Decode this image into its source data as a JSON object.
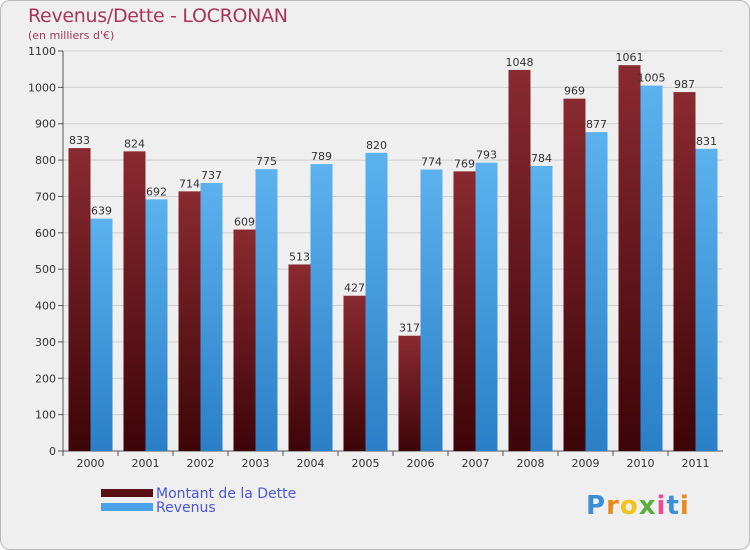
{
  "header": {
    "title": "Revenus/Dette - LOCRONAN",
    "subtitle": "(en milliers d'€)"
  },
  "chart_data": {
    "type": "bar",
    "categories": [
      "2000",
      "2001",
      "2002",
      "2003",
      "2004",
      "2005",
      "2006",
      "2007",
      "2008",
      "2009",
      "2010",
      "2011"
    ],
    "series": [
      {
        "name": "Montant de la Dette",
        "color": "#7a1f24",
        "values": [
          833,
          824,
          714,
          609,
          513,
          427,
          317,
          769,
          1048,
          969,
          1061,
          987
        ]
      },
      {
        "name": "Revenus",
        "color": "#4aa3e6",
        "values": [
          639,
          692,
          737,
          775,
          789,
          820,
          774,
          793,
          784,
          877,
          1005,
          831
        ]
      }
    ],
    "ylim": [
      0,
      1100
    ],
    "yticks": [
      0,
      100,
      200,
      300,
      400,
      500,
      600,
      700,
      800,
      900,
      1000,
      1100
    ],
    "grid": true,
    "legend_position": "bottom-left"
  },
  "legend": {
    "items": [
      {
        "label": "Montant de la Dette",
        "color": "#7a1f24"
      },
      {
        "label": "Revenus",
        "color": "#4aa3e6"
      }
    ]
  },
  "logo": {
    "letters": [
      "P",
      "r",
      "o",
      "x",
      "i",
      "t",
      "i"
    ],
    "colors": [
      "#3a8fd6",
      "#e98a1c",
      "#f2c318",
      "#5aae3c",
      "#e94d8f",
      "#3a8fd6",
      "#e98a1c"
    ]
  }
}
